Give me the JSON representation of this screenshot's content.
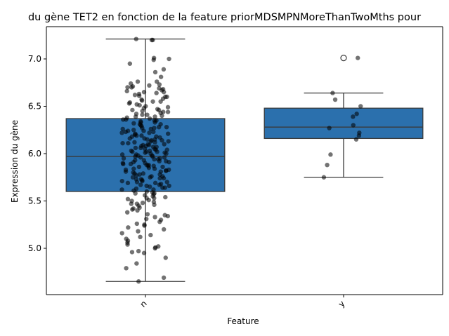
{
  "chart_data": {
    "type": "box",
    "title": "du gène TET2 en fonction de la feature priorMDSMPNMoreThanTwoMths pour",
    "xlabel": "Feature",
    "ylabel": "Expression du gène",
    "categories": [
      "n",
      "y"
    ],
    "ylim": [
      4.5,
      7.35
    ],
    "yticks": [
      "5.0",
      "5.5",
      "6.0",
      "6.5",
      "7.0"
    ],
    "grid": false,
    "colors": {
      "box": "#2b70ad",
      "edge": "#3a3a3a",
      "point": "#000000",
      "outlier_fill": "#ffffff"
    },
    "boxes": [
      {
        "category": "n",
        "q1": 5.6,
        "median": 5.97,
        "q3": 6.37,
        "whisker_low": 4.65,
        "whisker_high": 7.21,
        "outliers": []
      },
      {
        "category": "y",
        "q1": 6.16,
        "median": 6.28,
        "q3": 6.48,
        "whisker_low": 5.75,
        "whisker_high": 6.64,
        "outliers": [
          7.01
        ]
      }
    ],
    "points": {
      "n": [
        7.2,
        7.21,
        7.2,
        7.0,
        7.01,
        6.99,
        6.95,
        6.89,
        6.86,
        6.81,
        6.76,
        6.76,
        6.73,
        6.74,
        6.72,
        6.71,
        6.7,
        6.69,
        6.68,
        6.67,
        6.66,
        6.65,
        6.64,
        6.63,
        6.62,
        6.61,
        6.6,
        6.58,
        6.57,
        6.56,
        6.55,
        6.54,
        6.53,
        6.52,
        6.51,
        6.5,
        6.49,
        6.48,
        6.47,
        6.46,
        6.45,
        6.44,
        6.43,
        6.42,
        6.41,
        6.4,
        6.39,
        6.38,
        6.37,
        6.36,
        6.35,
        6.34,
        6.33,
        6.32,
        6.31,
        6.3,
        6.29,
        6.28,
        6.27,
        6.26,
        6.25,
        6.24,
        6.23,
        6.22,
        6.21,
        6.2,
        6.19,
        6.18,
        6.17,
        6.16,
        6.15,
        6.14,
        6.13,
        6.12,
        6.11,
        6.1,
        6.09,
        6.08,
        6.07,
        6.06,
        6.05,
        6.04,
        6.03,
        6.02,
        6.01,
        6.0,
        5.99,
        5.98,
        5.97,
        5.96,
        5.95,
        5.94,
        5.93,
        5.92,
        5.91,
        5.9,
        5.89,
        5.88,
        5.87,
        5.86,
        5.85,
        5.84,
        5.83,
        5.82,
        5.81,
        5.8,
        5.79,
        5.78,
        5.77,
        5.76,
        5.75,
        5.74,
        5.73,
        5.72,
        5.71,
        5.7,
        5.69,
        5.68,
        5.67,
        5.66,
        5.65,
        5.64,
        5.63,
        5.62,
        5.61,
        5.6,
        5.59,
        5.58,
        5.57,
        5.56,
        5.55,
        5.54,
        5.53,
        5.52,
        5.51,
        5.5,
        5.49,
        5.48,
        5.47,
        5.46,
        5.45,
        5.43,
        5.42,
        5.4,
        5.38,
        5.36,
        5.34,
        5.33,
        5.31,
        5.3,
        5.28,
        5.26,
        5.25,
        5.24,
        5.22,
        5.2,
        5.18,
        5.16,
        5.14,
        5.12,
        5.1,
        5.08,
        5.06,
        5.04,
        5.02,
        5.01,
        5.0,
        4.97,
        4.96,
        4.95,
        4.9,
        4.84,
        4.79,
        4.69,
        4.65,
        6.13,
        6.02,
        5.91,
        6.22,
        6.44,
        5.84,
        6.07,
        5.73,
        6.31,
        5.97,
        5.66,
        6.18,
        5.88,
        6.05,
        6.27,
        5.79,
        6.11,
        5.94,
        6.36,
        5.69,
        6.01,
        6.24,
        5.86,
        6.15,
        5.76,
        6.09,
        5.98,
        6.41,
        5.71,
        6.03,
        6.19,
        5.92,
        5.82,
        6.26,
        6.06,
        5.74,
        6.12,
        5.95,
        6.33,
        5.67,
        6.0,
        6.21,
        5.89,
        6.08,
        5.78,
        6.16,
        5.96,
        6.39,
        5.7,
        6.04,
        5.83,
        6.28,
        5.93,
        5.62,
        6.1,
        5.99,
        6.46,
        5.75,
        6.14,
        5.87,
        6.23,
        5.64,
        6.02,
        5.9,
        6.55,
        5.58,
        5.81,
        6.35,
        6.6,
        5.53,
        6.65,
        5.47,
        6.7,
        5.41,
        5.35
      ],
      "y": [
        7.01,
        6.64,
        6.57,
        6.5,
        6.42,
        6.39,
        6.3,
        6.27,
        6.22,
        6.19,
        6.15,
        5.99,
        5.88,
        5.75
      ]
    }
  }
}
